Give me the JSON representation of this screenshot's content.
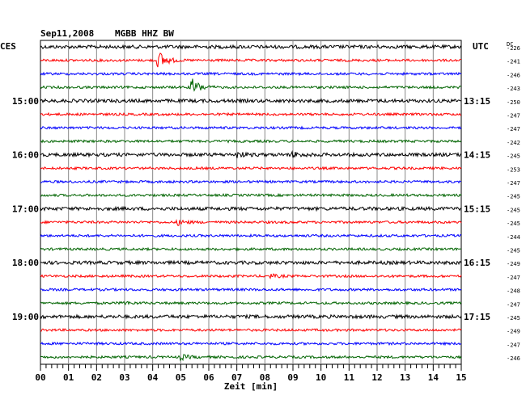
{
  "header": {
    "date": "Sep11,2008",
    "station": "MGBB HHZ BW",
    "left_tz": "CES",
    "right_tz": "UTC",
    "dc_label": "DC"
  },
  "chart_data": {
    "type": "line",
    "title": "Sep11,2008 MGBB HHZ BW",
    "xlabel": "Zeit [min]",
    "xlim": [
      0,
      15
    ],
    "x_ticks": [
      "00",
      "01",
      "02",
      "03",
      "04",
      "05",
      "06",
      "07",
      "08",
      "09",
      "10",
      "11",
      "12",
      "13",
      "14",
      "15"
    ],
    "left_time_labels": [
      {
        "row": 4,
        "label": "15:00"
      },
      {
        "row": 8,
        "label": "16:00"
      },
      {
        "row": 12,
        "label": "17:00"
      },
      {
        "row": 16,
        "label": "18:00"
      },
      {
        "row": 20,
        "label": "19:00"
      }
    ],
    "right_time_labels": [
      {
        "row": 4,
        "label": "13:15"
      },
      {
        "row": 8,
        "label": "14:15"
      },
      {
        "row": 12,
        "label": "15:15"
      },
      {
        "row": 16,
        "label": "16:15"
      },
      {
        "row": 20,
        "label": "17:15"
      }
    ],
    "trace_colors": [
      "#000000",
      "#ff0000",
      "#0000ff",
      "#006400"
    ],
    "dc_offsets": [
      "-226",
      "-241",
      "-246",
      "-243",
      "-250",
      "-247",
      "-247",
      "-242",
      "-245",
      "-253",
      "-247",
      "-245",
      "-245",
      "-245",
      "-244",
      "-245",
      "-249",
      "-247",
      "-248",
      "-247",
      "-245",
      "-249",
      "-247",
      "-246"
    ],
    "events": [
      {
        "row": 1,
        "minute": 4.2,
        "amplitude": 12
      },
      {
        "row": 3,
        "minute": 5.4,
        "amplitude": 11
      },
      {
        "row": 8,
        "minute": 7.0,
        "amplitude": 3
      },
      {
        "row": 8,
        "minute": 9.0,
        "amplitude": 3
      },
      {
        "row": 13,
        "minute": 4.9,
        "amplitude": 3
      },
      {
        "row": 17,
        "minute": 8.2,
        "amplitude": 2
      },
      {
        "row": 19,
        "minute": 2.9,
        "amplitude": 2
      },
      {
        "row": 23,
        "minute": 5.0,
        "amplitude": 3
      }
    ],
    "grid": true
  }
}
